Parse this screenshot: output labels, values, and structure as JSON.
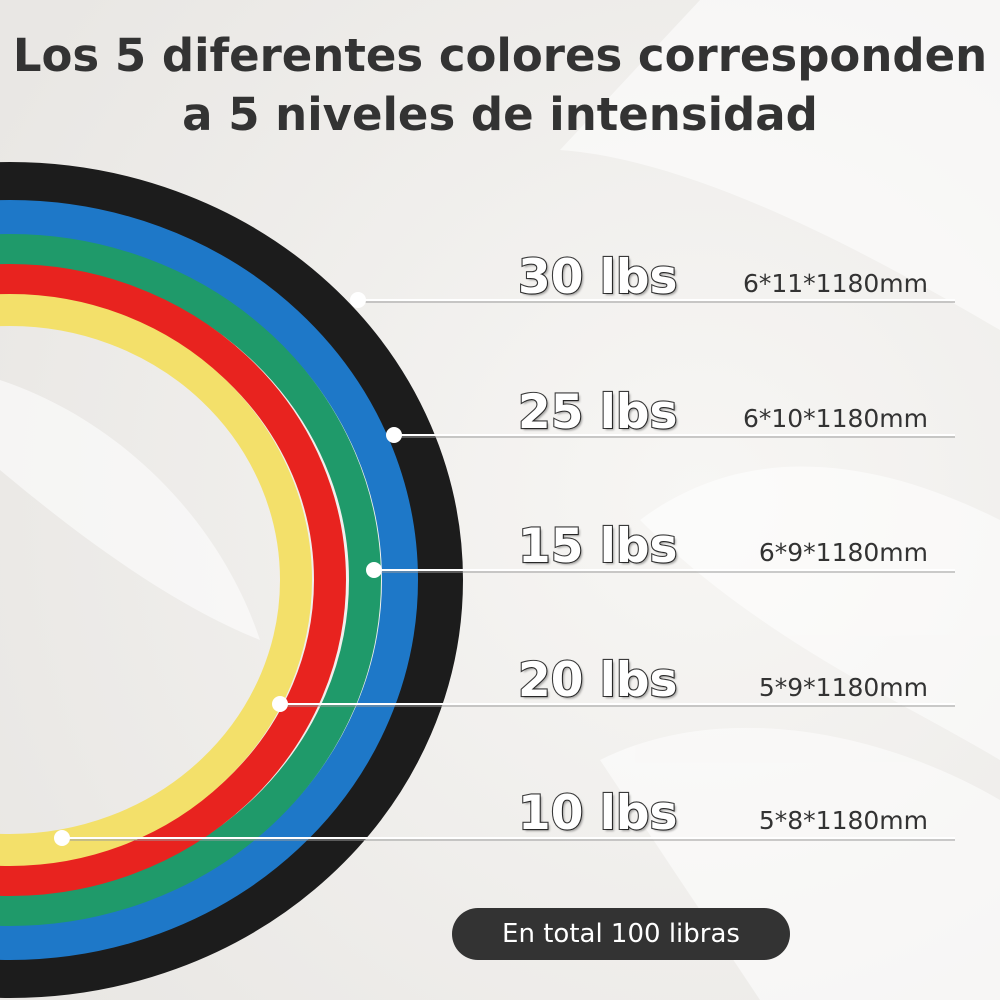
{
  "title": {
    "line1": "Los 5 diferentes colores corresponden",
    "line2": "a 5 niveles de intensidad"
  },
  "bands": [
    {
      "weight": "30 lbs",
      "dimensions": "6*11*1180mm",
      "color": "#1c1c1c"
    },
    {
      "weight": "25 lbs",
      "dimensions": "6*10*1180mm",
      "color": "#1e78c8"
    },
    {
      "weight": "15 lbs",
      "dimensions": "6*9*1180mm",
      "color": "#1f9a6a"
    },
    {
      "weight": "20 lbs",
      "dimensions": "5*9*1180mm",
      "color": "#e8231f"
    },
    {
      "weight": "10 lbs",
      "dimensions": "5*8*1180mm",
      "color": "#f3e06a"
    }
  ],
  "total_badge": "En total 100 libras"
}
